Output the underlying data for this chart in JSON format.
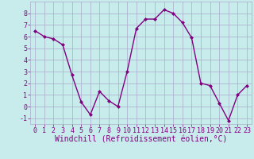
{
  "x": [
    0,
    1,
    2,
    3,
    4,
    5,
    6,
    7,
    8,
    9,
    10,
    11,
    12,
    13,
    14,
    15,
    16,
    17,
    18,
    19,
    20,
    21,
    22,
    23
  ],
  "y": [
    6.5,
    6.0,
    5.8,
    5.3,
    2.7,
    0.4,
    -0.7,
    1.3,
    0.5,
    0.0,
    3.0,
    6.7,
    7.5,
    7.5,
    8.3,
    8.0,
    7.2,
    5.9,
    2.0,
    1.8,
    0.3,
    -1.2,
    1.0,
    1.8
  ],
  "line_color": "#800080",
  "marker": "D",
  "marker_size": 2.0,
  "line_width": 1.0,
  "xlabel": "Windchill (Refroidissement éolien,°C)",
  "xlabel_fontsize": 7.0,
  "xlim": [
    -0.5,
    23.5
  ],
  "ylim": [
    -1.5,
    9.0
  ],
  "yticks": [
    -1,
    0,
    1,
    2,
    3,
    4,
    5,
    6,
    7,
    8
  ],
  "xticks": [
    0,
    1,
    2,
    3,
    4,
    5,
    6,
    7,
    8,
    9,
    10,
    11,
    12,
    13,
    14,
    15,
    16,
    17,
    18,
    19,
    20,
    21,
    22,
    23
  ],
  "background_color": "#c8ecec",
  "grid_color": "#aaaacc",
  "tick_color": "#800080",
  "tick_fontsize": 6.0,
  "figure_bg": "#c8ecec"
}
